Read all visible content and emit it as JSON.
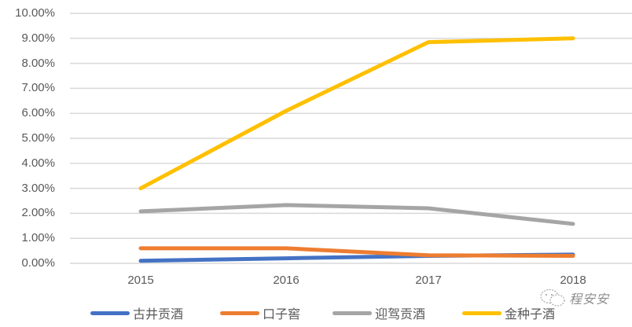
{
  "chart_data": {
    "type": "line",
    "title": "",
    "xlabel": "",
    "ylabel": "",
    "categories": [
      "2015",
      "2016",
      "2017",
      "2018"
    ],
    "ylim": [
      0,
      0.1
    ],
    "yticks": [
      "0.00%",
      "1.00%",
      "2.00%",
      "3.00%",
      "4.00%",
      "5.00%",
      "6.00%",
      "7.00%",
      "8.00%",
      "9.00%",
      "10.00%"
    ],
    "grid": true,
    "legend_position": "bottom",
    "series": [
      {
        "name": "古井贡酒",
        "color": "#4472C4",
        "values": [
          0.001,
          0.002,
          0.003,
          0.0035
        ]
      },
      {
        "name": "口子窖",
        "color": "#ED7D31",
        "values": [
          0.006,
          0.006,
          0.0032,
          0.003
        ]
      },
      {
        "name": "迎驾贡酒",
        "color": "#A5A5A5",
        "values": [
          0.0208,
          0.0233,
          0.022,
          0.0158
        ]
      },
      {
        "name": "金种子酒",
        "color": "#FFC000",
        "values": [
          0.03,
          0.061,
          0.0885,
          0.09
        ]
      }
    ]
  },
  "watermark": {
    "icon": "wechat-icon",
    "text": "程安安"
  }
}
